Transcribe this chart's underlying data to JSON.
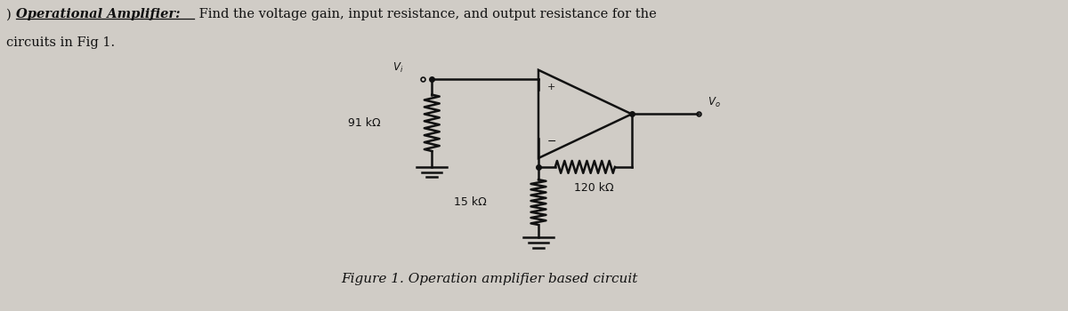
{
  "bg_color": "#d0ccc6",
  "text_color": "#111111",
  "r1_label": "91 kΩ",
  "r2_label": "120 kΩ",
  "r3_label": "15 kΩ",
  "figure_caption": "Figure 1. Operation amplifier based circuit",
  "title_line1": ") Operational Amplifier: Find the voltage gain, input resistance, and output resistance for the",
  "title_line2": "circuits in Fig 1.",
  "opamp_bold_italic": "Operational Amplifier:",
  "opamp_rest": " Find the voltage gain, input resistance, and output resistance for the"
}
